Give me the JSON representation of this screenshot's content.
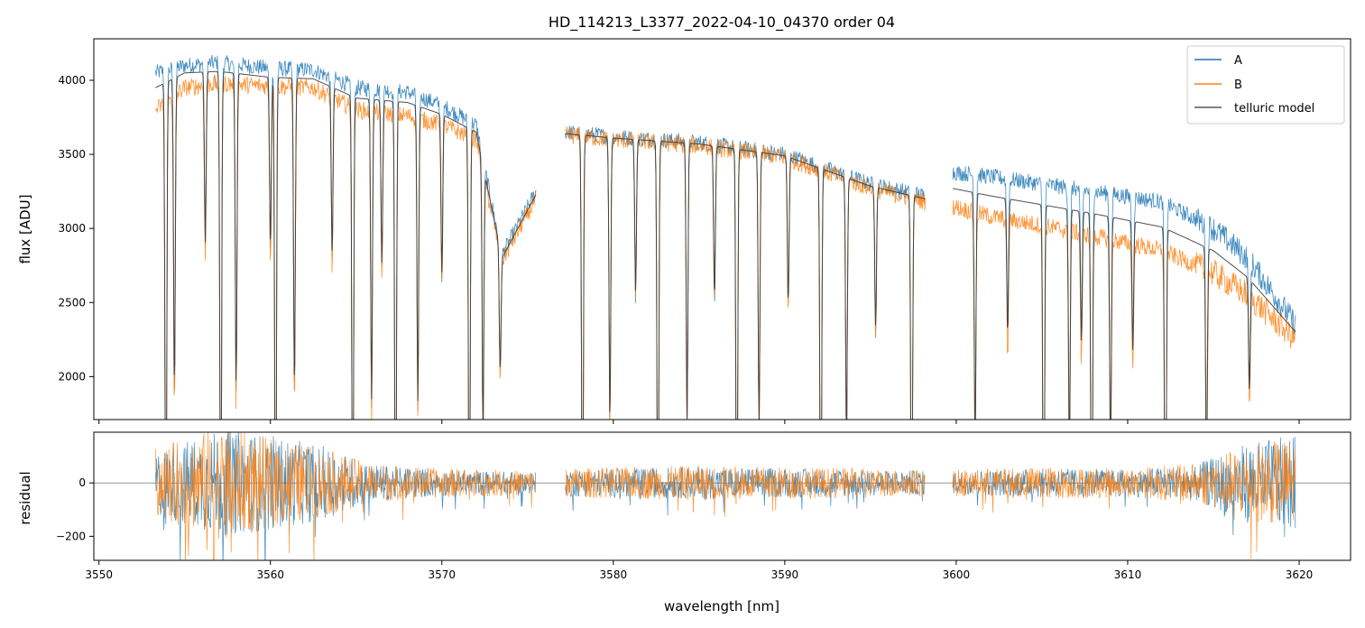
{
  "chart_data": {
    "type": "line",
    "title": "HD_114213_L3377_2022-04-10_04370  order 04",
    "xlabel": "wavelength [nm]",
    "xlim": [
      3549.7,
      3623.0
    ],
    "x_ticks": [
      3550,
      3560,
      3570,
      3580,
      3590,
      3600,
      3610,
      3620
    ],
    "x_tick_labels": [
      "3550",
      "3560",
      "3570",
      "3580",
      "3590",
      "3600",
      "3610",
      "3620"
    ],
    "grid": false,
    "legend_position": "top-right",
    "legend": [
      "A",
      "B",
      "telluric model"
    ],
    "colors": {
      "A": "#1f77b4",
      "B": "#ff7f0e",
      "model": "#3a3a3a"
    },
    "segments": [
      [
        3553.3,
        3575.5
      ],
      [
        3577.2,
        3598.2
      ],
      [
        3599.8,
        3619.8
      ]
    ],
    "top_panel": {
      "ylabel": "flux [ADU]",
      "ylim": [
        1710,
        4280
      ],
      "y_ticks": [
        2000,
        2500,
        3000,
        3500,
        4000
      ],
      "y_tick_labels": [
        "2000",
        "2500",
        "3000",
        "3500",
        "4000"
      ],
      "series": [
        {
          "name": "A",
          "x": [
            3553.3,
            3555,
            3557,
            3560,
            3562.5,
            3565,
            3568,
            3570,
            3572,
            3573.5,
            3575.5,
            3577.2,
            3580,
            3585,
            3590,
            3595,
            3598.2,
            3599.8,
            3602,
            3605,
            3608,
            3612,
            3615,
            3617,
            3619.8
          ],
          "y": [
            4050,
            4100,
            4120,
            4080,
            4070,
            3950,
            3920,
            3830,
            3700,
            2820,
            3250,
            3650,
            3620,
            3580,
            3500,
            3300,
            3220,
            3380,
            3350,
            3300,
            3250,
            3180,
            3000,
            2800,
            2350
          ]
        },
        {
          "name": "B",
          "x": [
            3553.3,
            3555,
            3557,
            3560,
            3562.5,
            3565,
            3568,
            3570,
            3572,
            3573.5,
            3575.5,
            3577.2,
            3580,
            3585,
            3590,
            3595,
            3598.2,
            3599.8,
            3602,
            3605,
            3608,
            3612,
            3615,
            3617,
            3619.8
          ],
          "y": [
            3800,
            3950,
            3980,
            3960,
            3950,
            3800,
            3760,
            3700,
            3600,
            2780,
            3200,
            3630,
            3600,
            3560,
            3480,
            3270,
            3180,
            3150,
            3080,
            3020,
            2950,
            2850,
            2700,
            2550,
            2250
          ]
        },
        {
          "name": "telluric model",
          "x": [
            3553.3,
            3555,
            3557,
            3560,
            3562.5,
            3565,
            3568,
            3570,
            3572,
            3573.5,
            3575.5,
            3577.2,
            3580,
            3585,
            3590,
            3595,
            3598.2,
            3599.8,
            3602,
            3605,
            3608,
            3612,
            3615,
            3617,
            3619.8
          ],
          "y": [
            3950,
            4050,
            4060,
            4020,
            4010,
            3880,
            3850,
            3770,
            3650,
            2800,
            3230,
            3640,
            3610,
            3570,
            3490,
            3285,
            3200,
            3270,
            3220,
            3160,
            3100,
            3010,
            2850,
            2670,
            2300
          ]
        }
      ],
      "absorption_lines": [
        3553.9,
        3554.4,
        3556.2,
        3557.1,
        3558.0,
        3560.0,
        3560.3,
        3561.4,
        3563.6,
        3564.8,
        3565.9,
        3566.5,
        3567.3,
        3568.6,
        3570.0,
        3571.6,
        3572.4,
        3573.4,
        3578.2,
        3579.8,
        3581.3,
        3582.6,
        3584.3,
        3585.9,
        3587.2,
        3588.5,
        3590.2,
        3592.1,
        3593.6,
        3595.3,
        3597.4,
        3601.1,
        3603.0,
        3605.1,
        3606.6,
        3607.3,
        3607.9,
        3609.0,
        3610.3,
        3612.2,
        3614.6,
        3617.1
      ]
    },
    "bottom_panel": {
      "ylabel": "residual",
      "ylim": [
        -290,
        190
      ],
      "y_ticks": [
        -200,
        0
      ],
      "y_tick_labels": [
        "−200",
        "0"
      ],
      "series": [
        {
          "name": "A",
          "x": [
            3553.3,
            3557,
            3560,
            3563,
            3566,
            3570,
            3575.5,
            3577.2,
            3585,
            3590,
            3598.2,
            3599.8,
            3605,
            3610,
            3614,
            3617,
            3619.8
          ],
          "amplitude": [
            120,
            200,
            180,
            140,
            70,
            50,
            40,
            50,
            60,
            55,
            45,
            45,
            55,
            50,
            70,
            150,
            180
          ]
        },
        {
          "name": "B",
          "x": [
            3553.3,
            3557,
            3560,
            3563,
            3566,
            3570,
            3575.5,
            3577.2,
            3585,
            3590,
            3598.2,
            3599.8,
            3605,
            3610,
            3614,
            3617,
            3619.8
          ],
          "amplitude": [
            130,
            210,
            170,
            130,
            70,
            55,
            45,
            55,
            65,
            60,
            50,
            50,
            60,
            55,
            75,
            140,
            170
          ]
        }
      ]
    }
  }
}
